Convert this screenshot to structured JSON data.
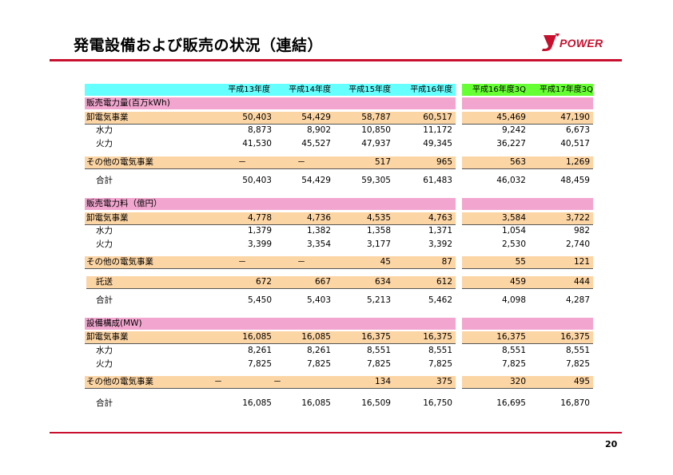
{
  "title": "発電設備および販売の状況（連結）",
  "logo": {
    "text": "POWER",
    "mark": "J",
    "brand_color": "#c8102e"
  },
  "page_number": "20",
  "colors": {
    "header": "#66ffff",
    "section": "#f2a6cf",
    "category": "#fcd5a4",
    "quarter_header": "#66ff33",
    "rule": "#c8102e"
  },
  "columns": [
    "平成13年度",
    "平成14年度",
    "平成15年度",
    "平成16年度",
    "平成16年度3Q",
    "平成17年度3Q"
  ],
  "sales_volume": {
    "heading": "販売電力量(百万kWh)",
    "wholesale": {
      "label": "卸電気事業",
      "values": [
        "50,403",
        "54,429",
        "58,787",
        "60,517",
        "45,469",
        "47,190"
      ]
    },
    "hydro": {
      "label": "水力",
      "values": [
        "8,873",
        "8,902",
        "10,850",
        "11,172",
        "9,242",
        "6,673"
      ]
    },
    "thermal": {
      "label": "火力",
      "values": [
        "41,530",
        "45,527",
        "47,937",
        "49,345",
        "36,227",
        "40,517"
      ]
    },
    "other": {
      "label": "その他の電気事業",
      "values": [
        "－",
        "－",
        "517",
        "965",
        "563",
        "1,269"
      ]
    },
    "total": {
      "label": "合計",
      "values": [
        "50,403",
        "54,429",
        "59,305",
        "61,483",
        "46,032",
        "48,459"
      ]
    }
  },
  "sales_revenue": {
    "heading": "販売電力料（億円）",
    "wholesale": {
      "label": "卸電気事業",
      "values": [
        "4,778",
        "4,736",
        "4,535",
        "4,763",
        "3,584",
        "3,722"
      ]
    },
    "hydro": {
      "label": "水力",
      "values": [
        "1,379",
        "1,382",
        "1,358",
        "1,371",
        "1,054",
        "982"
      ]
    },
    "thermal": {
      "label": "火力",
      "values": [
        "3,399",
        "3,354",
        "3,177",
        "3,392",
        "2,530",
        "2,740"
      ]
    },
    "other": {
      "label": "その他の電気事業",
      "values": [
        "－",
        "－",
        "45",
        "87",
        "55",
        "121"
      ]
    },
    "transmission": {
      "label": "託送",
      "values": [
        "672",
        "667",
        "634",
        "612",
        "459",
        "444"
      ]
    },
    "total": {
      "label": "合計",
      "values": [
        "5,450",
        "5,403",
        "5,213",
        "5,462",
        "4,098",
        "4,287"
      ]
    }
  },
  "capacity": {
    "heading": "設備構成(MW)",
    "wholesale": {
      "label": "卸電気事業",
      "values": [
        "16,085",
        "16,085",
        "16,375",
        "16,375",
        "16,375",
        "16,375"
      ]
    },
    "hydro": {
      "label": "水力",
      "values": [
        "8,261",
        "8,261",
        "8,551",
        "8,551",
        "8,551",
        "8,551"
      ]
    },
    "thermal": {
      "label": "火力",
      "values": [
        "7,825",
        "7,825",
        "7,825",
        "7,825",
        "7,825",
        "7,825"
      ]
    },
    "other": {
      "label": "その他の電気事業",
      "values": [
        "－",
        "－",
        "134",
        "375",
        "320",
        "495"
      ]
    },
    "total": {
      "label": "合計",
      "values": [
        "16,085",
        "16,085",
        "16,509",
        "16,750",
        "16,695",
        "16,870"
      ]
    }
  }
}
